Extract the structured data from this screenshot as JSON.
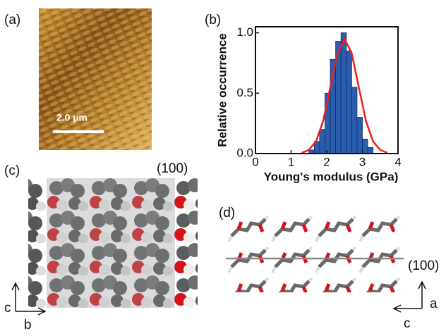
{
  "panels": {
    "a": {
      "label": "(a)",
      "scale_bar": "2.0 µm"
    },
    "b": {
      "label": "(b)"
    },
    "c": {
      "label": "(c)",
      "plane": "(100)",
      "axis_vertical": "c",
      "axis_horizontal": "b"
    },
    "d": {
      "label": "(d)",
      "plane": "(100)",
      "axis_vertical": "a",
      "axis_horizontal": "c"
    }
  },
  "chart_data": {
    "type": "histogram",
    "xlabel": "Young's modulus (GPa)",
    "ylabel": "Relative occurrence",
    "bins": [
      1.5,
      1.65,
      1.8,
      1.95,
      2.1,
      2.25,
      2.4,
      2.55,
      2.7,
      2.85,
      3.0,
      3.15,
      3.3
    ],
    "values": [
      0.03,
      0.1,
      0.2,
      0.5,
      0.78,
      0.93,
      1.0,
      0.85,
      0.55,
      0.3,
      0.12,
      0.05
    ],
    "color": "#2a5db0",
    "fit": {
      "color": "#e8211d",
      "x": [
        1.3,
        1.5,
        1.7,
        1.9,
        2.1,
        2.3,
        2.5,
        2.7,
        2.9,
        3.1,
        3.3,
        3.5,
        3.7
      ],
      "values": [
        0.006,
        0.03,
        0.1,
        0.27,
        0.55,
        0.83,
        0.95,
        0.83,
        0.55,
        0.27,
        0.1,
        0.03,
        0.006
      ]
    },
    "xlim": [
      0,
      4
    ],
    "xticks": [
      0,
      1,
      2,
      3,
      4
    ],
    "ylim": [
      0,
      1.05
    ],
    "yticks": [
      {
        "value": 0,
        "label": "0.0"
      },
      0.5,
      {
        "value": 1,
        "label": "1.0"
      }
    ]
  }
}
